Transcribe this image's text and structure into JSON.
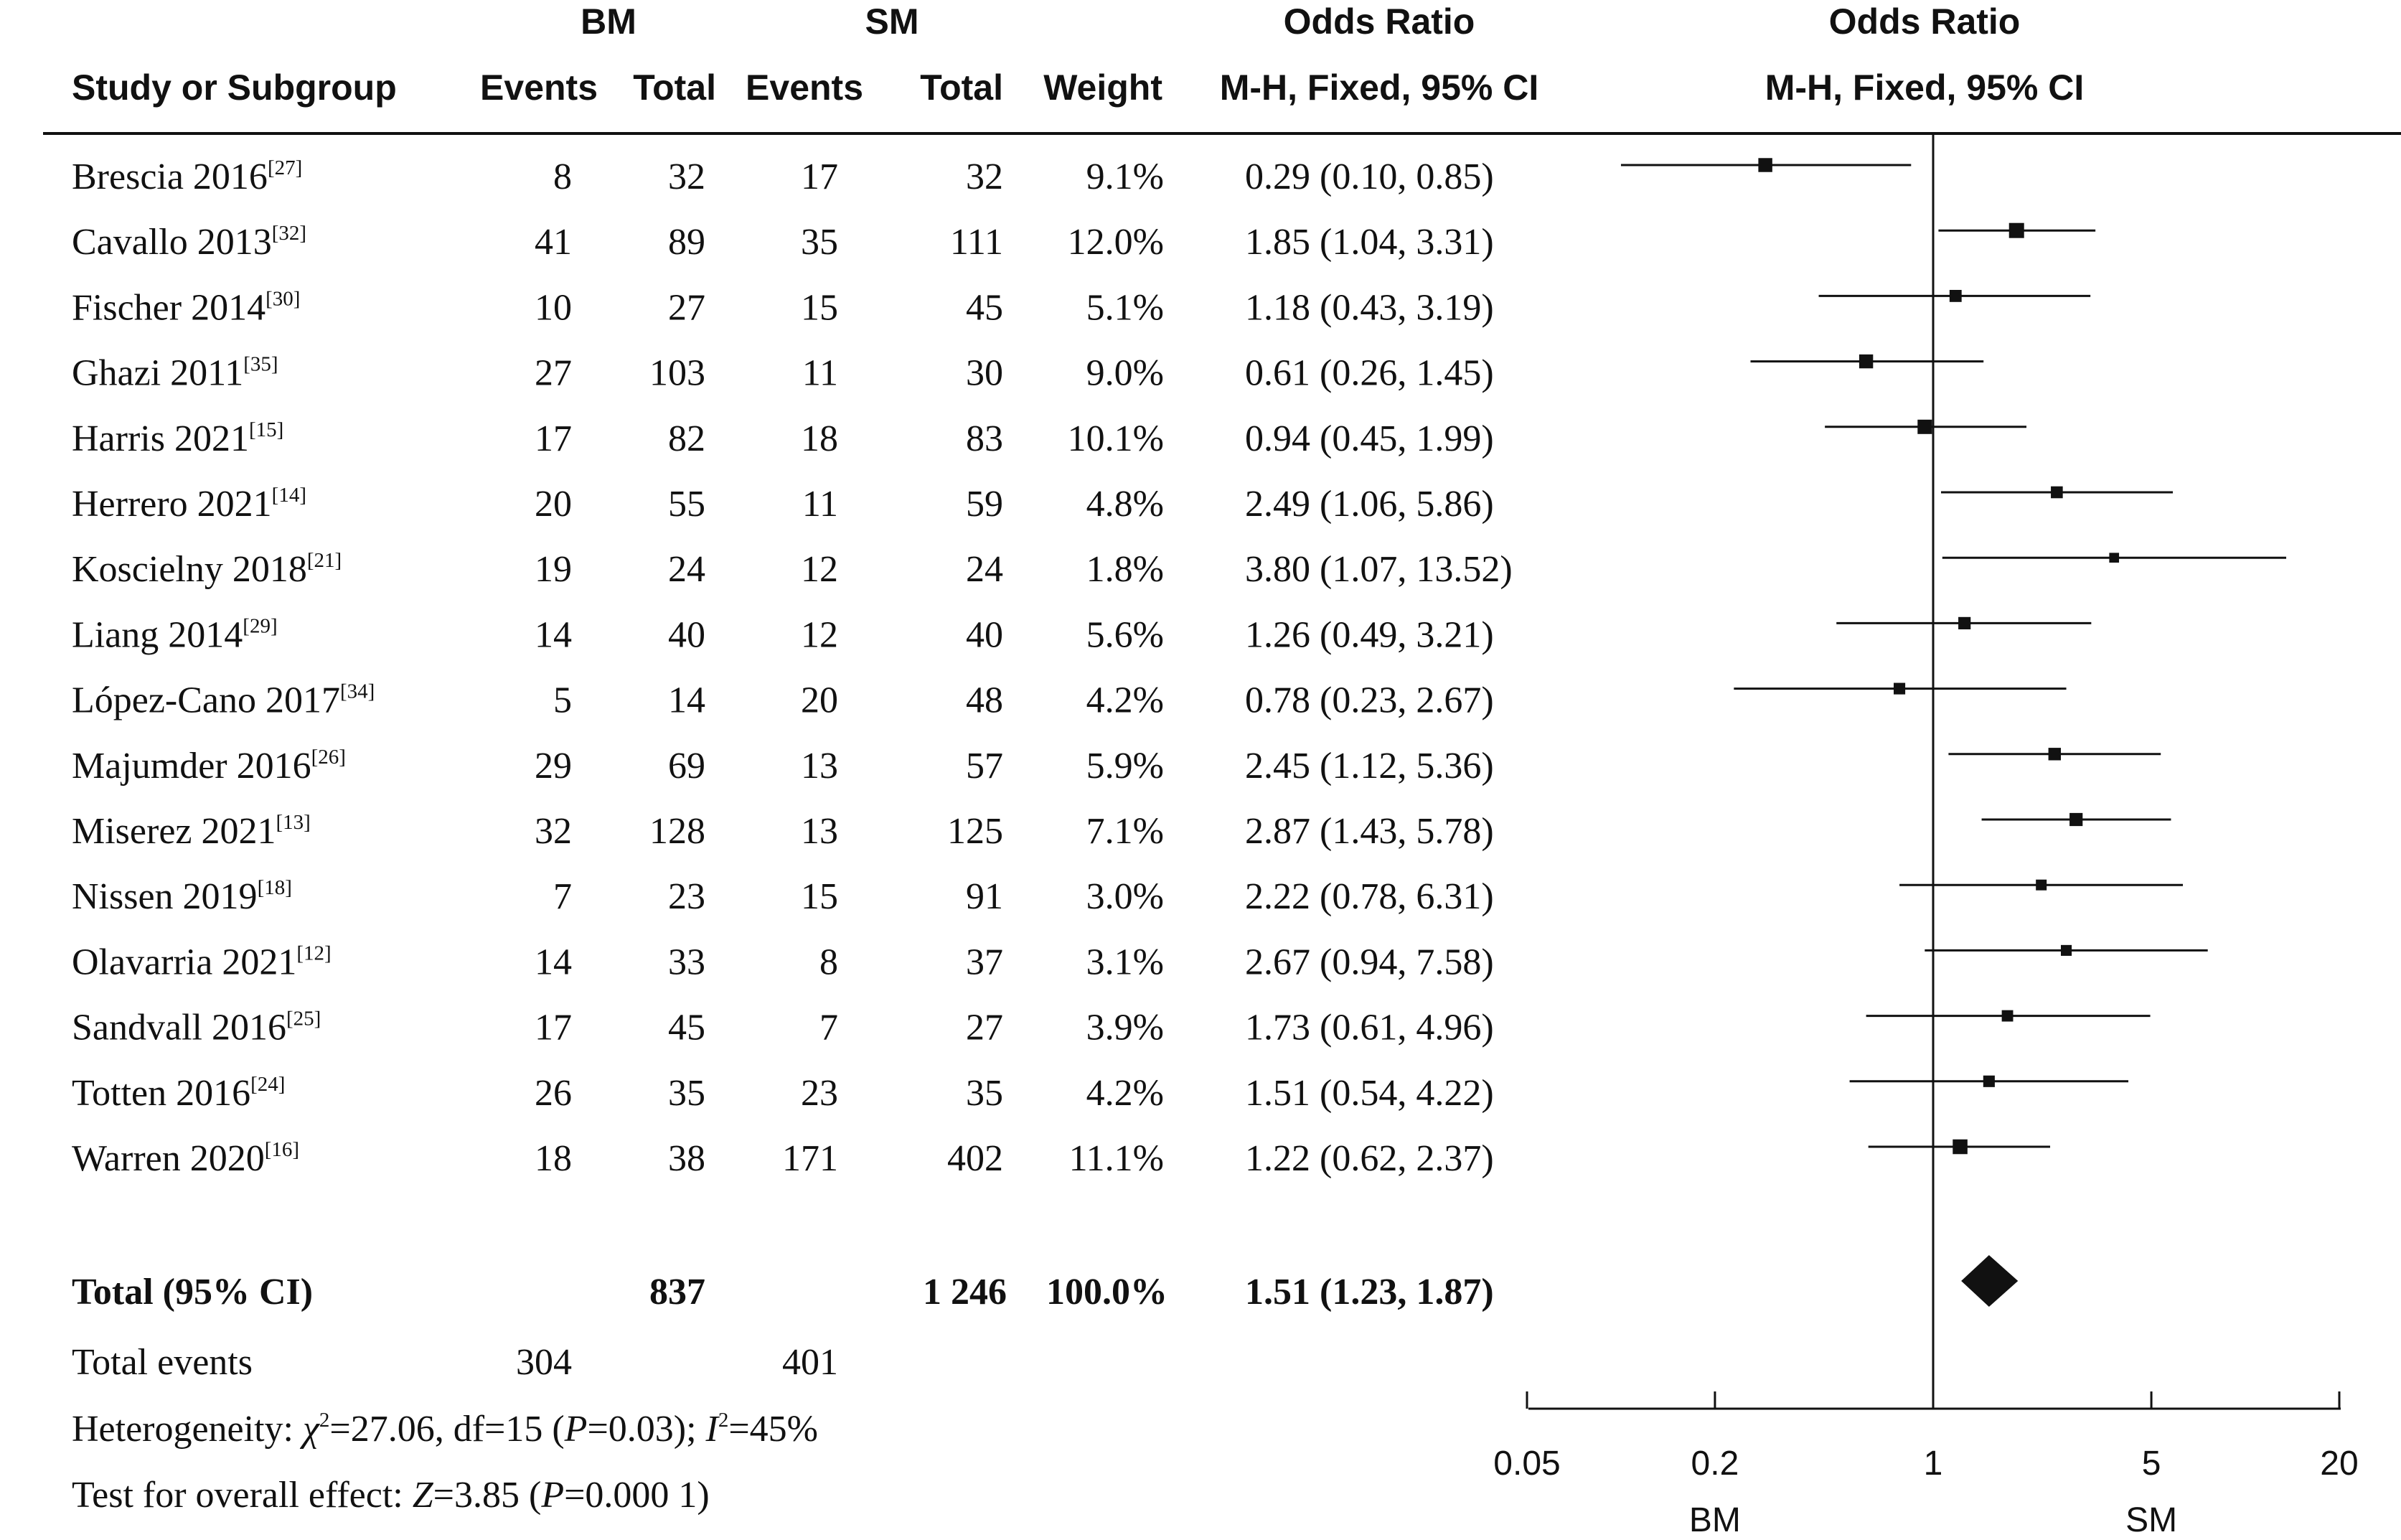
{
  "headers": {
    "group1": "BM",
    "group2": "SM",
    "or_title_left": "Odds Ratio",
    "or_title_right": "Odds Ratio",
    "study": "Study or Subgroup",
    "events1": "Events",
    "total1": "Total",
    "events2": "Events",
    "total2": "Total",
    "weight": "Weight",
    "method_left": "M-H, Fixed, 95% CI",
    "method_right": "M-H, Fixed, 95% CI"
  },
  "studies": [
    {
      "name": "Brescia 2016",
      "ref": "[27]",
      "e1": "8",
      "n1": "32",
      "e2": "17",
      "n2": "32",
      "weight": "9.1%",
      "or_text": "0.29 (0.10, 0.85)"
    },
    {
      "name": "Cavallo 2013",
      "ref": "[32]",
      "e1": "41",
      "n1": "89",
      "e2": "35",
      "n2": "111",
      "weight": "12.0%",
      "or_text": "1.85 (1.04, 3.31)"
    },
    {
      "name": "Fischer 2014",
      "ref": "[30]",
      "e1": "10",
      "n1": "27",
      "e2": "15",
      "n2": "45",
      "weight": "5.1%",
      "or_text": "1.18 (0.43, 3.19)"
    },
    {
      "name": "Ghazi 2011",
      "ref": "[35]",
      "e1": "27",
      "n1": "103",
      "e2": "11",
      "n2": "30",
      "weight": "9.0%",
      "or_text": "0.61 (0.26, 1.45)"
    },
    {
      "name": "Harris 2021",
      "ref": "[15]",
      "e1": "17",
      "n1": "82",
      "e2": "18",
      "n2": "83",
      "weight": "10.1%",
      "or_text": "0.94 (0.45, 1.99)"
    },
    {
      "name": "Herrero 2021",
      "ref": "[14]",
      "e1": "20",
      "n1": "55",
      "e2": "11",
      "n2": "59",
      "weight": "4.8%",
      "or_text": "2.49 (1.06, 5.86)"
    },
    {
      "name": "Koscielny 2018",
      "ref": "[21]",
      "e1": "19",
      "n1": "24",
      "e2": "12",
      "n2": "24",
      "weight": "1.8%",
      "or_text": "3.80 (1.07, 13.52)"
    },
    {
      "name": "Liang 2014",
      "ref": "[29]",
      "e1": "14",
      "n1": "40",
      "e2": "12",
      "n2": "40",
      "weight": "5.6%",
      "or_text": "1.26 (0.49, 3.21)"
    },
    {
      "name": "López-Cano 2017",
      "ref": "[34]",
      "e1": "5",
      "n1": "14",
      "e2": "20",
      "n2": "48",
      "weight": "4.2%",
      "or_text": "0.78 (0.23, 2.67)"
    },
    {
      "name": "Majumder 2016",
      "ref": "[26]",
      "e1": "29",
      "n1": "69",
      "e2": "13",
      "n2": "57",
      "weight": "5.9%",
      "or_text": "2.45 (1.12, 5.36)"
    },
    {
      "name": "Miserez 2021",
      "ref": "[13]",
      "e1": "32",
      "n1": "128",
      "e2": "13",
      "n2": "125",
      "weight": "7.1%",
      "or_text": "2.87 (1.43, 5.78)"
    },
    {
      "name": "Nissen 2019",
      "ref": "[18]",
      "e1": "7",
      "n1": "23",
      "e2": "15",
      "n2": "91",
      "weight": "3.0%",
      "or_text": "2.22 (0.78, 6.31)"
    },
    {
      "name": "Olavarria 2021",
      "ref": "[12]",
      "e1": "14",
      "n1": "33",
      "e2": "8",
      "n2": "37",
      "weight": "3.1%",
      "or_text": "2.67 (0.94, 7.58)"
    },
    {
      "name": "Sandvall 2016",
      "ref": "[25]",
      "e1": "17",
      "n1": "45",
      "e2": "7",
      "n2": "27",
      "weight": "3.9%",
      "or_text": "1.73 (0.61, 4.96)"
    },
    {
      "name": "Totten 2016",
      "ref": "[24]",
      "e1": "26",
      "n1": "35",
      "e2": "23",
      "n2": "35",
      "weight": "4.2%",
      "or_text": "1.51 (0.54, 4.22)"
    },
    {
      "name": "Warren 2020",
      "ref": "[16]",
      "e1": "18",
      "n1": "38",
      "e2": "171",
      "n2": "402",
      "weight": "11.1%",
      "or_text": "1.22 (0.62, 2.37)"
    }
  ],
  "total": {
    "label": "Total (95% CI)",
    "n1": "837",
    "n2": "1 246",
    "weight": "100.0%",
    "or_text": "1.51 (1.23, 1.87)"
  },
  "events": {
    "label": "Total events",
    "e1": "304",
    "e2": "401"
  },
  "heterogeneity": {
    "prefix": "Heterogeneity: ",
    "chi": "χ",
    "chi_sup": "2",
    "chi_value": "=27.06, df=15 (",
    "p_letter": "P",
    "p_value": "=0.03); ",
    "i_letter": "I",
    "i_sup": "2",
    "i_value": "=45%"
  },
  "overall": {
    "prefix": "Test for overall effect: ",
    "z_letter": "Z",
    "z_value": "=3.85 (",
    "p_letter": "P",
    "p_value": "=0.000 1)"
  },
  "chart_data": {
    "type": "scatter",
    "scale": "log",
    "xlim": [
      0.05,
      20
    ],
    "ticks": [
      0.05,
      0.2,
      1,
      5,
      20
    ],
    "tick_labels": [
      "0.05",
      "0.2",
      "1",
      "5",
      "20"
    ],
    "reference_line": 1,
    "favours_left": "BM",
    "favours_right": "SM",
    "points": [
      {
        "study": "Brescia 2016",
        "or": 0.29,
        "lo": 0.1,
        "hi": 0.85,
        "weight": 9.1
      },
      {
        "study": "Cavallo 2013",
        "or": 1.85,
        "lo": 1.04,
        "hi": 3.31,
        "weight": 12.0
      },
      {
        "study": "Fischer 2014",
        "or": 1.18,
        "lo": 0.43,
        "hi": 3.19,
        "weight": 5.1
      },
      {
        "study": "Ghazi 2011",
        "or": 0.61,
        "lo": 0.26,
        "hi": 1.45,
        "weight": 9.0
      },
      {
        "study": "Harris 2021",
        "or": 0.94,
        "lo": 0.45,
        "hi": 1.99,
        "weight": 10.1
      },
      {
        "study": "Herrero 2021",
        "or": 2.49,
        "lo": 1.06,
        "hi": 5.86,
        "weight": 4.8
      },
      {
        "study": "Koscielny 2018",
        "or": 3.8,
        "lo": 1.07,
        "hi": 13.52,
        "weight": 1.8
      },
      {
        "study": "Liang 2014",
        "or": 1.26,
        "lo": 0.49,
        "hi": 3.21,
        "weight": 5.6
      },
      {
        "study": "López-Cano 2017",
        "or": 0.78,
        "lo": 0.23,
        "hi": 2.67,
        "weight": 4.2
      },
      {
        "study": "Majumder 2016",
        "or": 2.45,
        "lo": 1.12,
        "hi": 5.36,
        "weight": 5.9
      },
      {
        "study": "Miserez 2021",
        "or": 2.87,
        "lo": 1.43,
        "hi": 5.78,
        "weight": 7.1
      },
      {
        "study": "Nissen 2019",
        "or": 2.22,
        "lo": 0.78,
        "hi": 6.31,
        "weight": 3.0
      },
      {
        "study": "Olavarria 2021",
        "or": 2.67,
        "lo": 0.94,
        "hi": 7.58,
        "weight": 3.1
      },
      {
        "study": "Sandvall 2016",
        "or": 1.73,
        "lo": 0.61,
        "hi": 4.96,
        "weight": 3.9
      },
      {
        "study": "Totten 2016",
        "or": 1.51,
        "lo": 0.54,
        "hi": 4.22,
        "weight": 4.2
      },
      {
        "study": "Warren 2020",
        "or": 1.22,
        "lo": 0.62,
        "hi": 2.37,
        "weight": 11.1
      }
    ],
    "pooled": {
      "or": 1.51,
      "lo": 1.23,
      "hi": 1.87,
      "weight": 100.0
    }
  }
}
